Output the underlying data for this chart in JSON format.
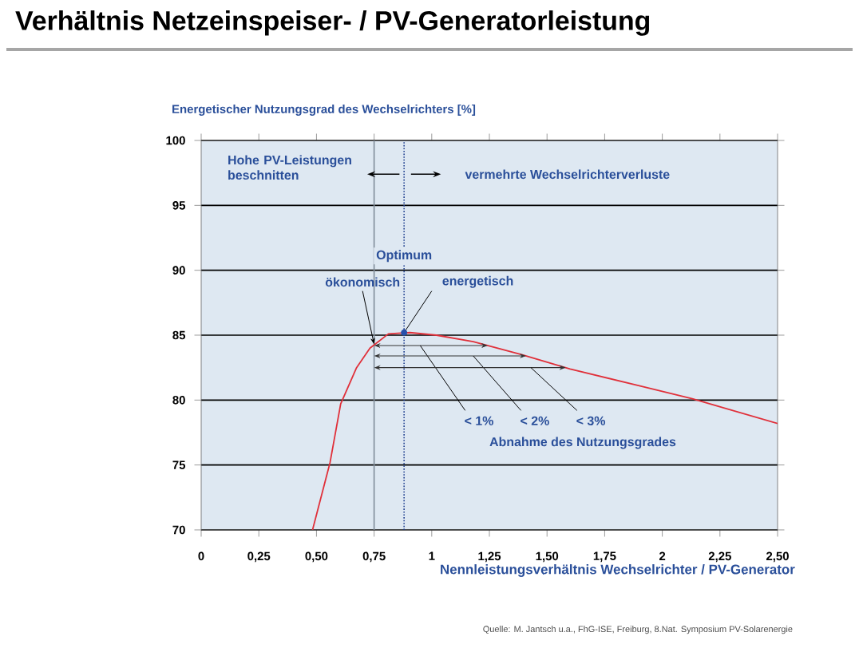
{
  "chart_data": {
    "type": "line",
    "title": "Verhältnis Netzeinspeiser- / PV-Generatorleistung",
    "xlabel": "Nennleistungsverhältnis Wechselrichter / PV-Generator",
    "ylabel": "Energetischer Nutzungsgrad des Wechselrichters  [%]",
    "xlim": [
      0,
      2.5
    ],
    "ylim": [
      70,
      100
    ],
    "xticks": [
      0,
      {
        "value": 0.25,
        "label": "0,25"
      },
      {
        "value": 0.5,
        "label": "0,50"
      },
      {
        "value": 0.75,
        "label": "0,75"
      },
      1,
      {
        "value": 1.25,
        "label": "1,25"
      },
      {
        "value": 1.5,
        "label": "1,50"
      },
      {
        "value": 1.75,
        "label": "1,75"
      },
      2,
      {
        "value": 2.25,
        "label": "2,25"
      },
      {
        "value": 2.5,
        "label": "2,50"
      }
    ],
    "yticks": [
      70,
      75,
      80,
      85,
      90,
      95,
      100
    ],
    "grid": "y",
    "series": [
      {
        "color": "#e0303a",
        "x": [
          0.483,
          0.559,
          0.605,
          0.674,
          0.732,
          0.812,
          0.905,
          1.02,
          1.18,
          1.39,
          1.6,
          1.9,
          2.13,
          2.5
        ],
        "values": [
          70,
          75.2,
          79.7,
          82.5,
          84.0,
          85.1,
          85.2,
          85.0,
          84.5,
          83.5,
          82.4,
          81.1,
          80.1,
          78.2
        ]
      }
    ],
    "ref_lines": [
      {
        "axis": "x",
        "value": 0.75,
        "color": "#7f8c99",
        "line_style": "solid"
      },
      {
        "axis": "x",
        "value": 0.88,
        "label": "Optimum",
        "color": "#1f3f8f",
        "line_style": "dotted"
      }
    ],
    "annotations": [
      "Hohe PV-Leistungen beschnitten",
      "vermehrte Wechselrichterverluste",
      {
        "text": "ökonomisch",
        "x": 0.75,
        "y": 84.3
      },
      {
        "text": "energetisch",
        "x": 0.88,
        "y": 85.2
      },
      "< 1%",
      "< 2%",
      "< 3%",
      "Abnahme des Nutzungsgrades",
      "Quelle: M. Jantsch u.a., FhG-ISE, Freiburg, 8.Nat. Symposium PV-Solarenergie"
    ]
  }
}
